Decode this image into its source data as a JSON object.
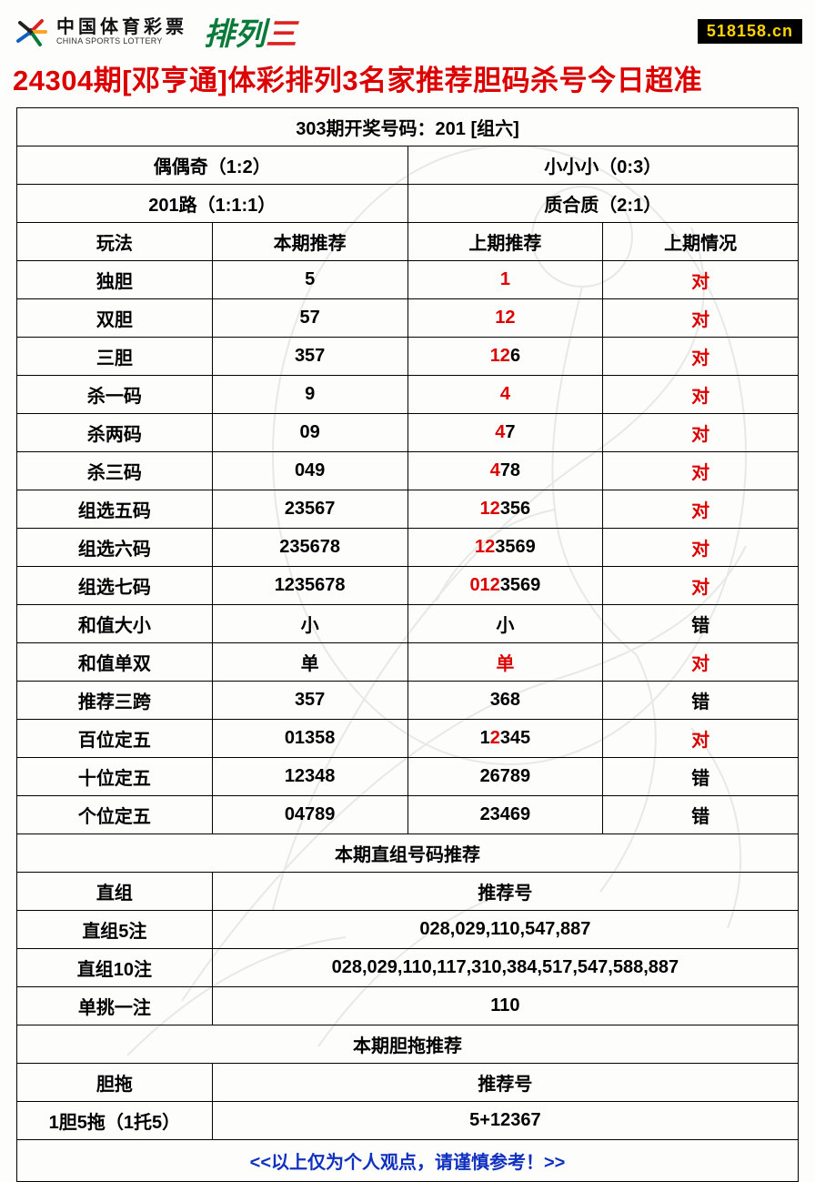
{
  "header": {
    "lottery_cn": "中国体育彩票",
    "lottery_en": "CHINA SPORTS LOTTERY",
    "game_name_a": "排",
    "game_name_b": "列",
    "game_name_c": "三",
    "site": "518158.cn"
  },
  "title": "24304期[邓亨通]体彩排列3名家推荐胆码杀号今日超准",
  "top_rows": {
    "row1_full": "303期开奖号码：201 [组六]",
    "row2_left": "偶偶奇（1:2）",
    "row2_right": "小小小（0:3）",
    "row3_left": "201路（1:1:1）",
    "row3_right": "质合质（2:1）"
  },
  "columns": [
    "玩法",
    "本期推荐",
    "上期推荐",
    "上期情况"
  ],
  "rows": [
    {
      "play": "独胆",
      "cur": "5",
      "prev": [
        {
          "t": "1",
          "c": "red"
        }
      ],
      "status": {
        "t": "对",
        "c": "red"
      }
    },
    {
      "play": "双胆",
      "cur": "57",
      "prev": [
        {
          "t": "12",
          "c": "red"
        }
      ],
      "status": {
        "t": "对",
        "c": "red"
      }
    },
    {
      "play": "三胆",
      "cur": "357",
      "prev": [
        {
          "t": "12",
          "c": "red"
        },
        {
          "t": "6",
          "c": ""
        }
      ],
      "status": {
        "t": "对",
        "c": "red"
      }
    },
    {
      "play": "杀一码",
      "cur": "9",
      "prev": [
        {
          "t": "4",
          "c": "red"
        }
      ],
      "status": {
        "t": "对",
        "c": "red"
      }
    },
    {
      "play": "杀两码",
      "cur": "09",
      "prev": [
        {
          "t": "4",
          "c": "red"
        },
        {
          "t": "7",
          "c": ""
        }
      ],
      "status": {
        "t": "对",
        "c": "red"
      }
    },
    {
      "play": "杀三码",
      "cur": "049",
      "prev": [
        {
          "t": "4",
          "c": "red"
        },
        {
          "t": "78",
          "c": ""
        }
      ],
      "status": {
        "t": "对",
        "c": "red"
      }
    },
    {
      "play": "组选五码",
      "cur": "23567",
      "prev": [
        {
          "t": "12",
          "c": "red"
        },
        {
          "t": "356",
          "c": ""
        }
      ],
      "status": {
        "t": "对",
        "c": "red"
      }
    },
    {
      "play": "组选六码",
      "cur": "235678",
      "prev": [
        {
          "t": "12",
          "c": "red"
        },
        {
          "t": "3569",
          "c": ""
        }
      ],
      "status": {
        "t": "对",
        "c": "red"
      }
    },
    {
      "play": "组选七码",
      "cur": "1235678",
      "prev": [
        {
          "t": "012",
          "c": "red"
        },
        {
          "t": "3569",
          "c": ""
        }
      ],
      "status": {
        "t": "对",
        "c": "red"
      }
    },
    {
      "play": "和值大小",
      "cur": "小",
      "prev": [
        {
          "t": "小",
          "c": ""
        }
      ],
      "status": {
        "t": "错",
        "c": ""
      }
    },
    {
      "play": "和值单双",
      "cur": "单",
      "prev": [
        {
          "t": "单",
          "c": "red"
        }
      ],
      "status": {
        "t": "对",
        "c": "red"
      }
    },
    {
      "play": "推荐三跨",
      "cur": "357",
      "prev": [
        {
          "t": "368",
          "c": ""
        }
      ],
      "status": {
        "t": "错",
        "c": ""
      }
    },
    {
      "play": "百位定五",
      "cur": "01358",
      "prev": [
        {
          "t": "1",
          "c": ""
        },
        {
          "t": "2",
          "c": "red"
        },
        {
          "t": "345",
          "c": ""
        }
      ],
      "status": {
        "t": "对",
        "c": "red"
      }
    },
    {
      "play": "十位定五",
      "cur": "12348",
      "prev": [
        {
          "t": "26789",
          "c": ""
        }
      ],
      "status": {
        "t": "错",
        "c": ""
      }
    },
    {
      "play": "个位定五",
      "cur": "04789",
      "prev": [
        {
          "t": "23469",
          "c": ""
        }
      ],
      "status": {
        "t": "错",
        "c": ""
      }
    }
  ],
  "section2": {
    "header": "本期直组号码推荐",
    "col_left": "直组",
    "col_right": "推荐号",
    "rows": [
      {
        "label": "直组5注",
        "val": "028,029,110,547,887"
      },
      {
        "label": "直组10注",
        "val": "028,029,110,117,310,384,517,547,588,887"
      },
      {
        "label": "单挑一注",
        "val": "110"
      }
    ]
  },
  "section3": {
    "header": "本期胆拖推荐",
    "col_left": "胆拖",
    "col_right": "推荐号",
    "rows": [
      {
        "label": "1胆5拖（1托5）",
        "val": "5+12367"
      }
    ]
  },
  "footer": "<<以上仅为个人观点，请谨慎参考！>>",
  "style": {
    "title_color": "#d00",
    "red": "#d00",
    "blue": "#1030c0",
    "border": "#000",
    "badge_bg": "#000",
    "badge_fg": "#ffd400",
    "font_size_cell": 20
  }
}
